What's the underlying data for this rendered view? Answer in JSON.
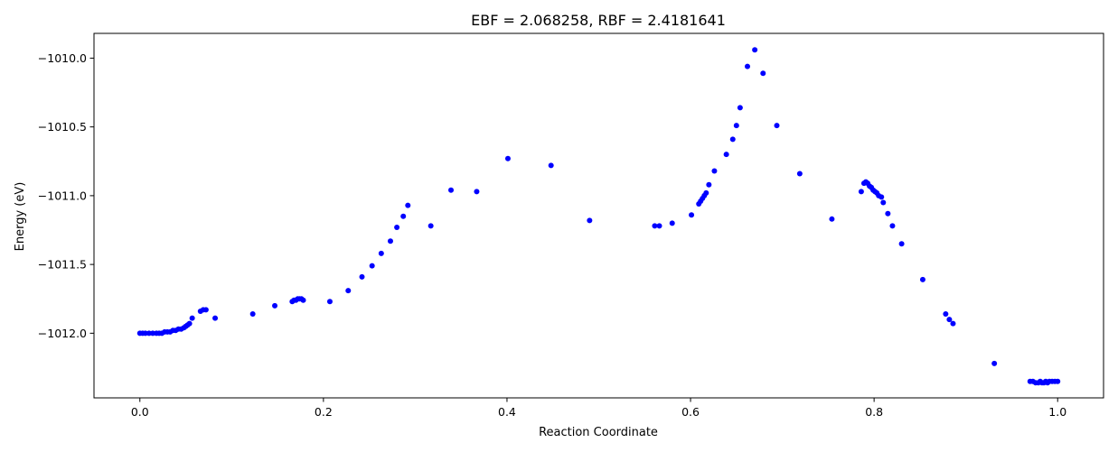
{
  "chart_data": {
    "type": "scatter",
    "title": "EBF = 2.068258, RBF = 2.4181641",
    "xlabel": "Reaction Coordinate",
    "ylabel": "Energy (eV)",
    "xlim": [
      -0.05,
      1.05
    ],
    "ylim": [
      -1012.47,
      -1009.82
    ],
    "xticks": [
      0.0,
      0.2,
      0.4,
      0.6,
      0.8,
      1.0
    ],
    "xtick_labels": [
      "0.0",
      "0.2",
      "0.4",
      "0.6",
      "0.8",
      "1.0"
    ],
    "yticks": [
      -1010.0,
      -1010.5,
      -1011.0,
      -1011.5,
      -1012.0
    ],
    "ytick_labels": [
      "−1010.0",
      "−1010.5",
      "−1011.0",
      "−1011.5",
      "−1012.0"
    ],
    "grid": false,
    "marker_color": "#0000ff",
    "series": [
      {
        "points": [
          [
            0.0,
            -1012.0
          ],
          [
            0.003,
            -1012.0
          ],
          [
            0.006,
            -1012.0
          ],
          [
            0.01,
            -1012.0
          ],
          [
            0.014,
            -1012.0
          ],
          [
            0.018,
            -1012.0
          ],
          [
            0.021,
            -1012.0
          ],
          [
            0.024,
            -1012.0
          ],
          [
            0.027,
            -1011.99
          ],
          [
            0.03,
            -1011.99
          ],
          [
            0.033,
            -1011.99
          ],
          [
            0.036,
            -1011.98
          ],
          [
            0.039,
            -1011.98
          ],
          [
            0.042,
            -1011.97
          ],
          [
            0.045,
            -1011.97
          ],
          [
            0.048,
            -1011.96
          ],
          [
            0.05,
            -1011.95
          ],
          [
            0.052,
            -1011.94
          ],
          [
            0.054,
            -1011.93
          ],
          [
            0.057,
            -1011.89
          ],
          [
            0.066,
            -1011.84
          ],
          [
            0.069,
            -1011.83
          ],
          [
            0.072,
            -1011.83
          ],
          [
            0.082,
            -1011.89
          ],
          [
            0.123,
            -1011.86
          ],
          [
            0.147,
            -1011.8
          ],
          [
            0.166,
            -1011.77
          ],
          [
            0.168,
            -1011.76
          ],
          [
            0.17,
            -1011.76
          ],
          [
            0.172,
            -1011.75
          ],
          [
            0.174,
            -1011.75
          ],
          [
            0.176,
            -1011.75
          ],
          [
            0.178,
            -1011.76
          ],
          [
            0.207,
            -1011.77
          ],
          [
            0.227,
            -1011.69
          ],
          [
            0.242,
            -1011.59
          ],
          [
            0.253,
            -1011.51
          ],
          [
            0.263,
            -1011.42
          ],
          [
            0.273,
            -1011.33
          ],
          [
            0.28,
            -1011.23
          ],
          [
            0.287,
            -1011.15
          ],
          [
            0.292,
            -1011.07
          ],
          [
            0.317,
            -1011.22
          ],
          [
            0.339,
            -1010.96
          ],
          [
            0.367,
            -1010.97
          ],
          [
            0.401,
            -1010.73
          ],
          [
            0.448,
            -1010.78
          ],
          [
            0.49,
            -1011.18
          ],
          [
            0.561,
            -1011.22
          ],
          [
            0.566,
            -1011.22
          ],
          [
            0.58,
            -1011.2
          ],
          [
            0.601,
            -1011.14
          ],
          [
            0.609,
            -1011.06
          ],
          [
            0.611,
            -1011.04
          ],
          [
            0.613,
            -1011.02
          ],
          [
            0.615,
            -1011.0
          ],
          [
            0.617,
            -1010.98
          ],
          [
            0.62,
            -1010.92
          ],
          [
            0.626,
            -1010.82
          ],
          [
            0.639,
            -1010.7
          ],
          [
            0.646,
            -1010.59
          ],
          [
            0.65,
            -1010.49
          ],
          [
            0.654,
            -1010.36
          ],
          [
            0.662,
            -1010.06
          ],
          [
            0.67,
            -1009.94
          ],
          [
            0.679,
            -1010.11
          ],
          [
            0.694,
            -1010.49
          ],
          [
            0.719,
            -1010.84
          ],
          [
            0.754,
            -1011.17
          ],
          [
            0.786,
            -1010.97
          ],
          [
            0.789,
            -1010.91
          ],
          [
            0.791,
            -1010.9
          ],
          [
            0.793,
            -1010.91
          ],
          [
            0.795,
            -1010.93
          ],
          [
            0.797,
            -1010.94
          ],
          [
            0.799,
            -1010.96
          ],
          [
            0.801,
            -1010.97
          ],
          [
            0.803,
            -1010.98
          ],
          [
            0.805,
            -1011.0
          ],
          [
            0.808,
            -1011.01
          ],
          [
            0.81,
            -1011.05
          ],
          [
            0.815,
            -1011.13
          ],
          [
            0.82,
            -1011.22
          ],
          [
            0.83,
            -1011.35
          ],
          [
            0.853,
            -1011.61
          ],
          [
            0.878,
            -1011.86
          ],
          [
            0.882,
            -1011.9
          ],
          [
            0.886,
            -1011.93
          ],
          [
            0.931,
            -1012.22
          ],
          [
            0.97,
            -1012.35
          ],
          [
            0.973,
            -1012.35
          ],
          [
            0.976,
            -1012.36
          ],
          [
            0.979,
            -1012.36
          ],
          [
            0.981,
            -1012.35
          ],
          [
            0.983,
            -1012.36
          ],
          [
            0.985,
            -1012.36
          ],
          [
            0.987,
            -1012.35
          ],
          [
            0.989,
            -1012.36
          ],
          [
            0.991,
            -1012.35
          ],
          [
            0.994,
            -1012.35
          ],
          [
            0.997,
            -1012.35
          ],
          [
            1.0,
            -1012.35
          ]
        ]
      }
    ]
  }
}
